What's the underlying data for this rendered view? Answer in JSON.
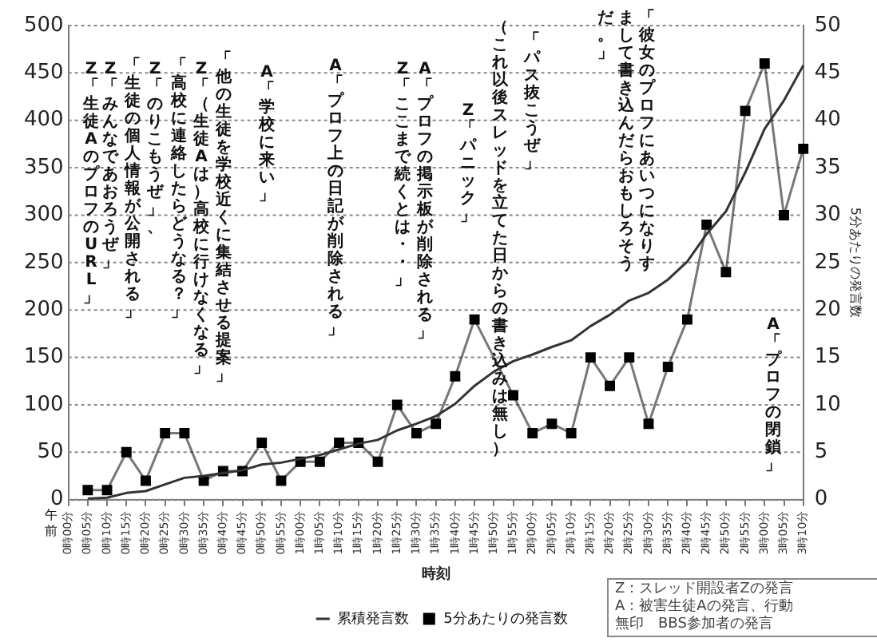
{
  "chart_data": {
    "type": "line",
    "xlabel": "時刻",
    "y2label": "5分あたりの発言数",
    "categories": [
      "0時00分",
      "0時05分",
      "0時10分",
      "0時15分",
      "0時20分",
      "0時25分",
      "0時30分",
      "0時35分",
      "0時40分",
      "0時45分",
      "0時50分",
      "0時55分",
      "1時00分",
      "1時05分",
      "1時10分",
      "1時15分",
      "1時20分",
      "1時25分",
      "1時30分",
      "1時35分",
      "1時40分",
      "1時45分",
      "1時50分",
      "1時55分",
      "2時00分",
      "2時05分",
      "2時10分",
      "2時15分",
      "2時20分",
      "2時25分",
      "2時30分",
      "2時35分",
      "2時40分",
      "2時45分",
      "2時50分",
      "2時55分",
      "3時00分",
      "3時05分",
      "3時10分"
    ],
    "series": [
      {
        "name": "累積発言数",
        "color": "#333333",
        "marker": "none",
        "values": [
          null,
          1,
          2,
          7,
          9,
          16,
          23,
          25,
          28,
          31,
          37,
          39,
          43,
          47,
          53,
          59,
          63,
          73,
          80,
          88,
          101,
          120,
          135,
          146,
          153,
          161,
          168,
          183,
          195,
          210,
          218,
          232,
          251,
          280,
          304,
          345,
          391,
          421,
          458
        ]
      },
      {
        "name": "5分あたりの発言数",
        "color": "#000000",
        "marker": "square",
        "axis": "y2",
        "values": [
          null,
          1,
          1,
          5,
          2,
          7,
          7,
          2,
          3,
          3,
          6,
          2,
          4,
          4,
          6,
          6,
          4,
          10,
          7,
          8,
          13,
          19,
          null,
          11,
          7,
          8,
          7,
          15,
          12,
          15,
          8,
          14,
          19,
          29,
          24,
          41,
          46,
          30,
          37
        ]
      }
    ],
    "ylim": [
      0,
      500
    ],
    "yticks": [
      0,
      50,
      100,
      150,
      200,
      250,
      300,
      350,
      400,
      450,
      500
    ],
    "y2lim": [
      0,
      50
    ],
    "y2ticks": [
      0,
      5,
      10,
      15,
      20,
      25,
      30,
      35,
      40,
      45,
      50
    ],
    "grid": "y",
    "legend": "bottom",
    "annotations": [
      "午前",
      "Z：スレッド開設者Zの発言",
      "A：被害生徒Aの発言、行動",
      "無印　BBS参加者の発言",
      "Z 「生徒AのプロフのURL」",
      "Z 「みんなであおろうぜ」",
      "「生徒の個人情報が公開される」",
      "Z 「のりこもうぜ」、",
      "「高校に連絡したらどうなる？」",
      "Z 「（生徒Aは）高校に行けなくなる」",
      "「他の生徒を学校近くに集結させる提案」",
      "A 「学校に来い」",
      "A 「プロフ上の日記が削除される」",
      "Z 「ここまで続くとは・・」",
      "A 「プロフの掲示板が削除される」",
      "Z 「パニック」",
      "（これ以後スレッドを立てた日からの書き込みは無し）",
      "「パス抜こうぜ」",
      "「彼女のプロフにあいつになりすまして書き込んだらおもしろそうだ。」",
      "A「プロフの閉鎖」"
    ]
  }
}
